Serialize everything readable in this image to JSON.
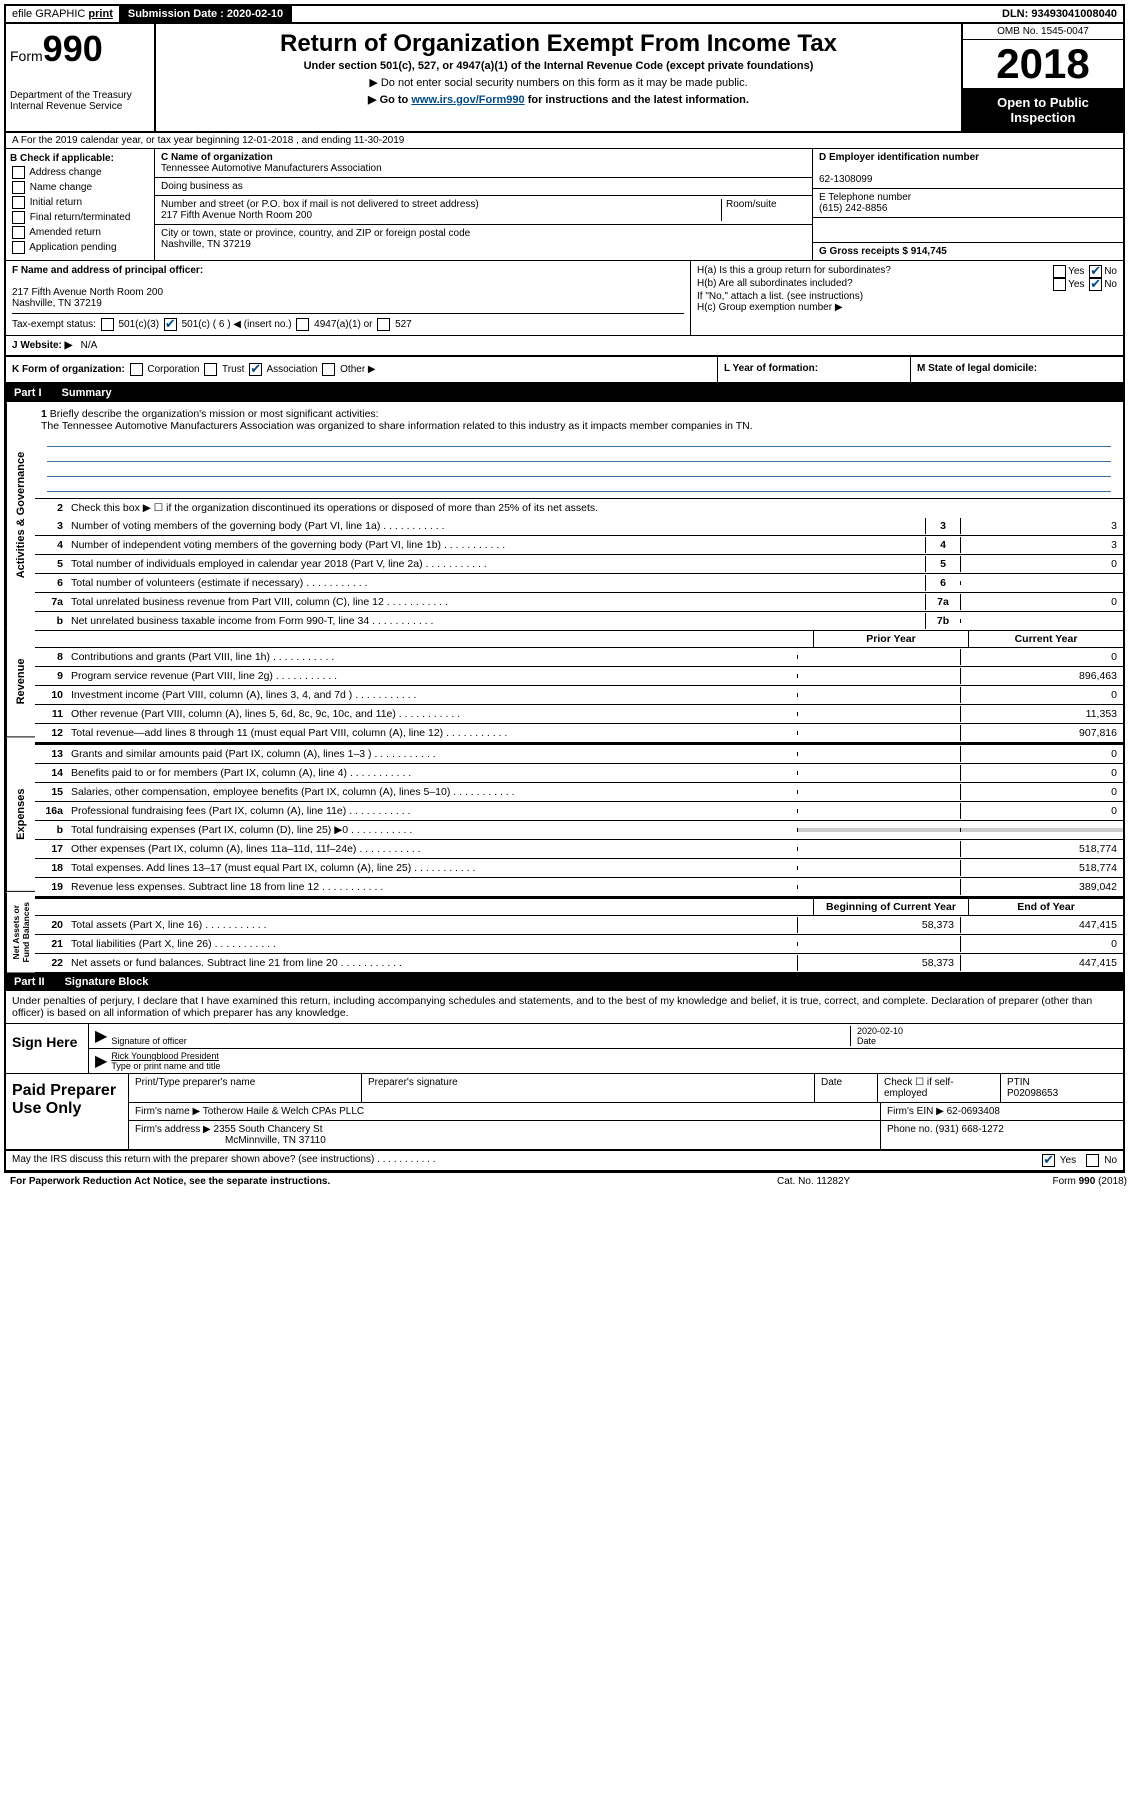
{
  "topbar": {
    "efile": "efile GRAPHIC",
    "print": "print",
    "sub_label": "Submission Date : 2020-02-10",
    "dln": "DLN: 93493041008040"
  },
  "header": {
    "form_label": "Form",
    "form_num": "990",
    "dept": "Department of the Treasury",
    "irs": "Internal Revenue Service",
    "title": "Return of Organization Exempt From Income Tax",
    "sub1": "Under section 501(c), 527, or 4947(a)(1) of the Internal Revenue Code (except private foundations)",
    "sub2": "▶ Do not enter social security numbers on this form as it may be made public.",
    "sub3_pre": "▶ Go to ",
    "sub3_link": "www.irs.gov/Form990",
    "sub3_post": " for instructions and the latest information.",
    "omb": "OMB No. 1545-0047",
    "year": "2018",
    "open": "Open to Public Inspection"
  },
  "line_a": "A For the 2019 calendar year, or tax year beginning 12-01-2018    , and ending 11-30-2019",
  "col_b": {
    "label": "B Check if applicable:",
    "opts": [
      "Address change",
      "Name change",
      "Initial return",
      "Final return/terminated",
      "Amended return",
      "Application pending"
    ]
  },
  "col_c": {
    "name_label": "C Name of organization",
    "name": "Tennessee Automotive Manufacturers Association",
    "dba_label": "Doing business as",
    "addr_label": "Number and street (or P.O. box if mail is not delivered to street address)",
    "room_label": "Room/suite",
    "addr": "217 Fifth Avenue North Room 200",
    "city_label": "City or town, state or province, country, and ZIP or foreign postal code",
    "city": "Nashville, TN  37219"
  },
  "col_d": {
    "ein_label": "D Employer identification number",
    "ein": "62-1308099",
    "tel_label": "E Telephone number",
    "tel": "(615) 242-8856",
    "gross_label": "G Gross receipts $ 914,745"
  },
  "row_f": {
    "label": "F  Name and address of principal officer:",
    "addr": "217 Fifth Avenue North Room 200\nNashville, TN  37219"
  },
  "row_h": {
    "ha": "H(a)  Is this a group return for subordinates?",
    "hb": "H(b)  Are all subordinates included?",
    "hb_note": "If \"No,\" attach a list. (see instructions)",
    "hc": "H(c)  Group exemption number ▶"
  },
  "status": {
    "label": "Tax-exempt status:",
    "c3": "501(c)(3)",
    "c_fill": "501(c) ( 6 ) ◀ (insert no.)",
    "a1": "4947(a)(1) or",
    "s527": "527"
  },
  "website": {
    "label": "J Website: ▶",
    "val": "N/A"
  },
  "k": "K Form of organization:",
  "k_opts": [
    "Corporation",
    "Trust",
    "Association",
    "Other ▶"
  ],
  "l": "L Year of formation:",
  "m": "M State of legal domicile:",
  "part1": {
    "num": "Part I",
    "title": "Summary",
    "side_ag": "Activities & Governance",
    "side_rev": "Revenue",
    "side_exp": "Expenses",
    "side_net": "Net Assets or Fund Balances",
    "l1": "Briefly describe the organization's mission or most significant activities:",
    "l1_text": "The Tennessee Automotive Manufacturers Association was organized to share information related to this industry as it impacts member companies in TN.",
    "l2": "Check this box ▶ ☐  if the organization discontinued its operations or disposed of more than 25% of its net assets.",
    "lines_gov": [
      {
        "n": "3",
        "d": "Number of voting members of the governing body (Part VI, line 1a)",
        "box": "3",
        "v": "3"
      },
      {
        "n": "4",
        "d": "Number of independent voting members of the governing body (Part VI, line 1b)",
        "box": "4",
        "v": "3"
      },
      {
        "n": "5",
        "d": "Total number of individuals employed in calendar year 2018 (Part V, line 2a)",
        "box": "5",
        "v": "0"
      },
      {
        "n": "6",
        "d": "Total number of volunteers (estimate if necessary)",
        "box": "6",
        "v": ""
      },
      {
        "n": "7a",
        "d": "Total unrelated business revenue from Part VIII, column (C), line 12",
        "box": "7a",
        "v": "0"
      },
      {
        "n": "b",
        "d": "Net unrelated business taxable income from Form 990-T, line 34",
        "box": "7b",
        "v": ""
      }
    ],
    "prior": "Prior Year",
    "current": "Current Year",
    "lines_rev": [
      {
        "n": "8",
        "d": "Contributions and grants (Part VIII, line 1h)",
        "p": "",
        "c": "0"
      },
      {
        "n": "9",
        "d": "Program service revenue (Part VIII, line 2g)",
        "p": "",
        "c": "896,463"
      },
      {
        "n": "10",
        "d": "Investment income (Part VIII, column (A), lines 3, 4, and 7d )",
        "p": "",
        "c": "0"
      },
      {
        "n": "11",
        "d": "Other revenue (Part VIII, column (A), lines 5, 6d, 8c, 9c, 10c, and 11e)",
        "p": "",
        "c": "11,353"
      },
      {
        "n": "12",
        "d": "Total revenue—add lines 8 through 11 (must equal Part VIII, column (A), line 12)",
        "p": "",
        "c": "907,816"
      }
    ],
    "lines_exp": [
      {
        "n": "13",
        "d": "Grants and similar amounts paid (Part IX, column (A), lines 1–3 )",
        "p": "",
        "c": "0"
      },
      {
        "n": "14",
        "d": "Benefits paid to or for members (Part IX, column (A), line 4)",
        "p": "",
        "c": "0"
      },
      {
        "n": "15",
        "d": "Salaries, other compensation, employee benefits (Part IX, column (A), lines 5–10)",
        "p": "",
        "c": "0"
      },
      {
        "n": "16a",
        "d": "Professional fundraising fees (Part IX, column (A), line 11e)",
        "p": "",
        "c": "0"
      },
      {
        "n": "b",
        "d": "Total fundraising expenses (Part IX, column (D), line 25) ▶0",
        "p": "grey",
        "c": "grey"
      },
      {
        "n": "17",
        "d": "Other expenses (Part IX, column (A), lines 11a–11d, 11f–24e)",
        "p": "",
        "c": "518,774"
      },
      {
        "n": "18",
        "d": "Total expenses. Add lines 13–17 (must equal Part IX, column (A), line 25)",
        "p": "",
        "c": "518,774"
      },
      {
        "n": "19",
        "d": "Revenue less expenses. Subtract line 18 from line 12",
        "p": "",
        "c": "389,042"
      }
    ],
    "begin": "Beginning of Current Year",
    "end": "End of Year",
    "lines_net": [
      {
        "n": "20",
        "d": "Total assets (Part X, line 16)",
        "p": "58,373",
        "c": "447,415"
      },
      {
        "n": "21",
        "d": "Total liabilities (Part X, line 26)",
        "p": "",
        "c": "0"
      },
      {
        "n": "22",
        "d": "Net assets or fund balances. Subtract line 21 from line 20",
        "p": "58,373",
        "c": "447,415"
      }
    ]
  },
  "part2": {
    "num": "Part II",
    "title": "Signature Block",
    "decl": "Under penalties of perjury, I declare that I have examined this return, including accompanying schedules and statements, and to the best of my knowledge and belief, it is true, correct, and complete. Declaration of preparer (other than officer) is based on all information of which preparer has any knowledge.",
    "sign_here": "Sign Here",
    "sig_officer": "Signature of officer",
    "sig_date": "2020-02-10",
    "sig_date_label": "Date",
    "sig_name": "Rick Youngblood  President",
    "sig_name_label": "Type or print name and title",
    "paid": "Paid Preparer Use Only",
    "prep_name_label": "Print/Type preparer's name",
    "prep_sig_label": "Preparer's signature",
    "prep_date_label": "Date",
    "prep_check": "Check ☐ if self-employed",
    "ptin_label": "PTIN",
    "ptin": "P02098653",
    "firm_name_label": "Firm's name    ▶",
    "firm_name": "Totherow Haile & Welch CPAs PLLC",
    "firm_ein_label": "Firm's EIN ▶",
    "firm_ein": "62-0693408",
    "firm_addr_label": "Firm's address ▶",
    "firm_addr": "2355 South Chancery St",
    "firm_city": "McMinnville, TN  37110",
    "phone_label": "Phone no.",
    "phone": "(931) 668-1272",
    "discuss": "May the IRS discuss this return with the preparer shown above? (see instructions)"
  },
  "footer": {
    "left": "For Paperwork Reduction Act Notice, see the separate instructions.",
    "mid": "Cat. No. 11282Y",
    "right": "Form 990 (2018)"
  }
}
